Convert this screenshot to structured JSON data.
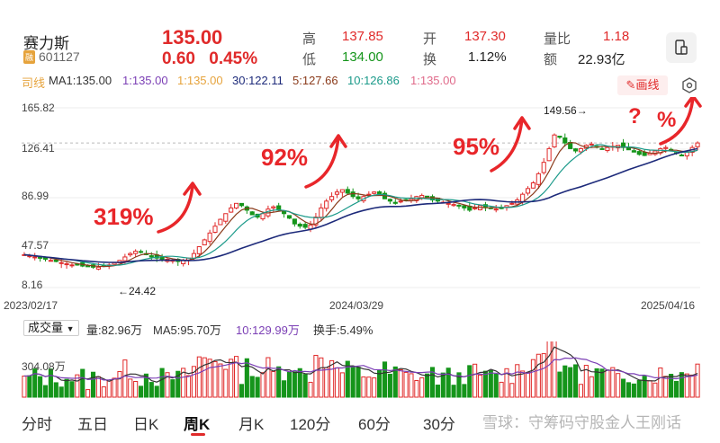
{
  "header": {
    "name": "赛力斯",
    "market_tag": "融",
    "code": "601127",
    "price": "135.00",
    "change": "0.60",
    "change_pct": "0.45%",
    "stats": {
      "high_label": "高",
      "high": "137.85",
      "low_label": "低",
      "low": "134.00",
      "open_label": "开",
      "open": "137.30",
      "turnover_label": "换",
      "turnover": "1.12%",
      "vol_ratio_label": "量比",
      "vol_ratio": "1.18",
      "amount_label": "额",
      "amount": "22.93亿"
    }
  },
  "ma_bar": {
    "prefix": "司线",
    "ma": "MA1:135.00",
    "ma1": "1:135.00",
    "ma2": "1:135.00",
    "ma30": "30:122.11",
    "ma5": "5:127.66",
    "ma10": "10:126.86",
    "ma_last": "1:135.00",
    "draw_label": "画线"
  },
  "colors": {
    "up": "#e02a2a",
    "down": "#15951b",
    "ma_purple": "#7b3fb5",
    "ma_gold": "#e6a33c",
    "ma_navy": "#1d2a7a",
    "ma_brown": "#8a3a1a",
    "ma_teal": "#1b9a8a",
    "ma_pink": "#e06a8a",
    "annotation": "#e8262a"
  },
  "chart_data": {
    "type": "candlestick",
    "y_labels": [
      "165.82",
      "126.41",
      "86.99",
      "47.57",
      "8.16"
    ],
    "ylim": [
      8.16,
      165.82
    ],
    "x_labels": [
      "2023/02/17",
      "2024/03/29",
      "2025/04/16"
    ],
    "markers": {
      "low_label": "←24.42",
      "high_label": "149.56→",
      "low_value": 24.42,
      "high_value": 149.56
    },
    "annotations": [
      "319%",
      "92%",
      "95%",
      "?",
      "%"
    ],
    "weekly_close": [
      37,
      36,
      35,
      34,
      33,
      32,
      31,
      30,
      29,
      28,
      28,
      27,
      27,
      26,
      26,
      27,
      28,
      30,
      32,
      35,
      38,
      40,
      39,
      37,
      35,
      34,
      33,
      33,
      32,
      31,
      32,
      34,
      38,
      44,
      50,
      56,
      62,
      68,
      73,
      78,
      82,
      80,
      76,
      72,
      70,
      73,
      77,
      79,
      76,
      73,
      69,
      64,
      62,
      61,
      63,
      70,
      78,
      84,
      88,
      92,
      94,
      91,
      88,
      86,
      88,
      90,
      92,
      89,
      86,
      84,
      82,
      84,
      85,
      86,
      88,
      89,
      87,
      85,
      84,
      83,
      82,
      81,
      80,
      78,
      76,
      78,
      80,
      79,
      78,
      77,
      78,
      80,
      82,
      85,
      90,
      95,
      100,
      108,
      118,
      130,
      142,
      140,
      135,
      130,
      128,
      130,
      133,
      134,
      132,
      130,
      131,
      132,
      133,
      131,
      129,
      127,
      125,
      124,
      126,
      128,
      130,
      131,
      128,
      126,
      124,
      127,
      131,
      135
    ],
    "ma_series": [
      {
        "name": "MA5",
        "value": "127.66"
      },
      {
        "name": "MA10",
        "value": "126.86"
      },
      {
        "name": "MA30",
        "value": "122.11"
      }
    ]
  },
  "volume": {
    "selector": "成交量",
    "vol": "量:82.96万",
    "ma5": "MA5:95.70万",
    "ma10": "10:129.99万",
    "turnover": "换手:5.49%",
    "y_label": "304.08万"
  },
  "tabs": [
    "分时",
    "五日",
    "日K",
    "周K",
    "月K",
    "120分",
    "60分",
    "30分"
  ],
  "active_tab": "周K",
  "watermark": "雪球：守筹码守股金人王刚话"
}
